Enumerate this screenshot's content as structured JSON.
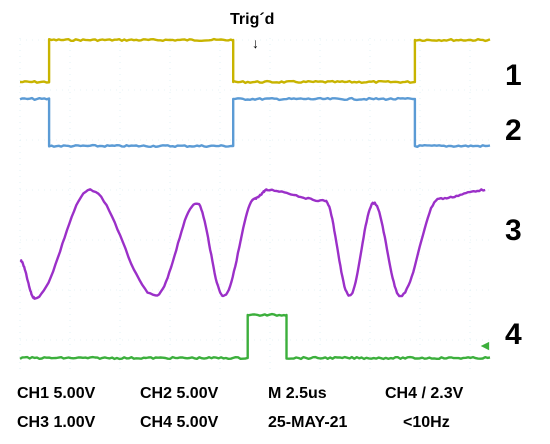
{
  "trigger_label": "Trig´d",
  "chart_data": {
    "type": "line",
    "timebase": "2.5us",
    "series": [
      {
        "name": "1",
        "color": "#c8b400",
        "x": [
          0,
          1.2,
          1.2,
          8.8,
          8.8,
          16.3,
          16.3,
          19.4
        ],
        "y": [
          0,
          0,
          1,
          1,
          0,
          0,
          1,
          1
        ]
      },
      {
        "name": "2",
        "color": "#5b9bd5",
        "x": [
          0,
          1.2,
          1.2,
          8.8,
          8.8,
          16.3,
          16.3,
          19.4
        ],
        "y": [
          1,
          1,
          0,
          0,
          1,
          1,
          0,
          0
        ]
      },
      {
        "name": "3",
        "color": "#9b30c8",
        "x": [
          0,
          0.6,
          2.9,
          5.6,
          7.3,
          8.4,
          9.7,
          10.2,
          12.6,
          13.6,
          14.6,
          15.7,
          17.3,
          19.2
        ],
        "y": [
          0.35,
          0,
          1,
          0.02,
          0.88,
          0.02,
          0.92,
          1,
          0.9,
          0.02,
          0.88,
          0.02,
          0.92,
          1
        ]
      },
      {
        "name": "4",
        "color": "#3caf3c",
        "x": [
          0,
          9.4,
          9.4,
          11.0,
          11.0,
          19.4
        ],
        "y": [
          0,
          0,
          1,
          1,
          0,
          0
        ]
      }
    ]
  },
  "status": {
    "row1": [
      "CH1  5.00V",
      "CH2  5.00V",
      "M 2.5us",
      "CH4 / 2.3V"
    ],
    "row2": [
      "CH3  1.00V",
      "CH4  5.00V",
      "25-MAY-21",
      "<10Hz"
    ]
  },
  "channel_labels": [
    "1",
    "2",
    "3",
    "4"
  ]
}
